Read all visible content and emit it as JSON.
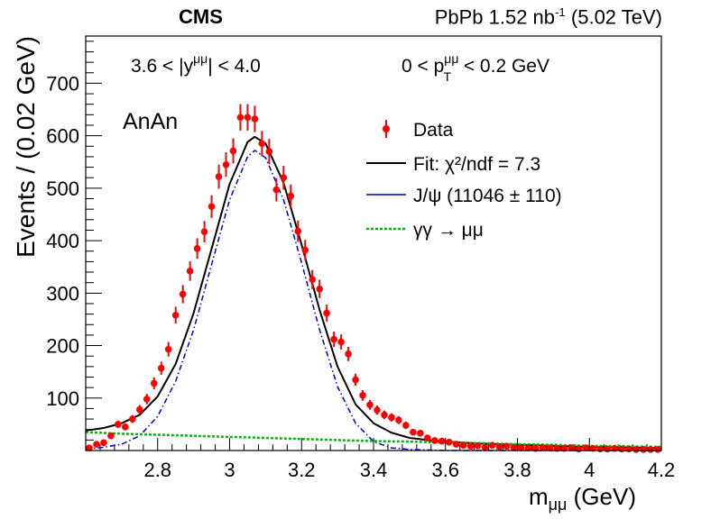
{
  "header": {
    "experiment": "CMS",
    "lumi_label": "PbPb 1.52 nb",
    "lumi_sup": "-1",
    "energy": "(5.02 TeV)"
  },
  "annotations": {
    "rapidity": "3.6 < |y^{μμ}| < 4.0",
    "pt": "0 < p_T^{μμ} < 0.2 GeV",
    "category": "AnAn"
  },
  "chart_data": {
    "type": "scatter",
    "xlabel": "m_{μμ} (GeV)",
    "ylabel": "Events / (0.02 GeV)",
    "xlim": [
      2.6,
      4.2
    ],
    "ylim": [
      0,
      790
    ],
    "x_ticks": [
      2.8,
      3,
      3.2,
      3.4,
      3.6,
      3.8,
      4,
      4.2
    ],
    "y_ticks": [
      100,
      200,
      300,
      400,
      500,
      600,
      700
    ],
    "legend_position": "upper-right",
    "series": [
      {
        "name": "Data",
        "kind": "points_with_errors",
        "color": "#ff0000",
        "x": [
          2.61,
          2.63,
          2.65,
          2.67,
          2.69,
          2.71,
          2.73,
          2.75,
          2.77,
          2.79,
          2.81,
          2.83,
          2.85,
          2.87,
          2.89,
          2.91,
          2.93,
          2.95,
          2.97,
          2.99,
          3.01,
          3.03,
          3.05,
          3.07,
          3.09,
          3.11,
          3.13,
          3.15,
          3.17,
          3.19,
          3.21,
          3.23,
          3.25,
          3.27,
          3.29,
          3.31,
          3.33,
          3.35,
          3.37,
          3.39,
          3.41,
          3.43,
          3.45,
          3.47,
          3.49,
          3.51,
          3.53,
          3.55,
          3.57,
          3.59,
          3.61,
          3.63,
          3.65,
          3.67,
          3.69,
          3.71,
          3.73,
          3.75,
          3.77,
          3.79,
          3.81,
          3.83,
          3.85,
          3.87,
          3.89,
          3.91,
          3.93,
          3.95,
          3.97,
          3.99,
          4.01,
          4.03,
          4.05,
          4.07,
          4.09,
          4.11,
          4.13,
          4.15,
          4.17,
          4.19
        ],
        "y": [
          5,
          12,
          15,
          28,
          50,
          45,
          60,
          78,
          98,
          128,
          157,
          193,
          258,
          298,
          342,
          385,
          417,
          465,
          522,
          545,
          571,
          635,
          635,
          632,
          585,
          570,
          497,
          520,
          485,
          418,
          382,
          326,
          308,
          262,
          212,
          207,
          184,
          135,
          105,
          87,
          77,
          68,
          63,
          58,
          48,
          35,
          33,
          24,
          19,
          18,
          16,
          12,
          10,
          8,
          9,
          6,
          10,
          7,
          8,
          6,
          5,
          5,
          4,
          6,
          5,
          4,
          4,
          5,
          3,
          5,
          4,
          3,
          3,
          4,
          3,
          3,
          2,
          2,
          2,
          2
        ],
        "yerr": [
          2.5,
          3.5,
          4,
          5.3,
          7.1,
          6.7,
          7.7,
          8.8,
          9.9,
          11.3,
          12.5,
          13.9,
          16.1,
          17.3,
          18.5,
          19.6,
          20.4,
          21.6,
          22.8,
          23.3,
          23.9,
          25.2,
          25.2,
          25.1,
          24.2,
          23.9,
          22.3,
          22.8,
          22,
          20.4,
          19.5,
          18.1,
          17.5,
          16.2,
          14.6,
          14.4,
          13.6,
          11.6,
          10.2,
          9.3,
          8.8,
          8.2,
          7.9,
          7.6,
          6.9,
          5.9,
          5.7,
          4.9,
          4.4,
          4.2,
          4,
          3.5,
          3.2,
          2.8,
          3,
          2.4,
          3.2,
          2.6,
          2.8,
          2.4,
          2.2,
          2.2,
          2,
          2.4,
          2.2,
          2,
          2,
          2.2,
          1.7,
          2.2,
          2,
          1.7,
          1.7,
          2,
          1.7,
          1.7,
          1.4,
          1.4,
          1.4,
          1.4
        ]
      },
      {
        "name": "Fit: χ²/ndf = 7.3",
        "kind": "line",
        "color": "#000000",
        "x": [
          2.6,
          2.65,
          2.7,
          2.75,
          2.8,
          2.85,
          2.9,
          2.95,
          3.0,
          3.05,
          3.07,
          3.1,
          3.15,
          3.2,
          3.25,
          3.3,
          3.35,
          3.4,
          3.45,
          3.5,
          3.55,
          3.6,
          3.7,
          3.8,
          3.9,
          4.0,
          4.1,
          4.2
        ],
        "y": [
          38,
          43,
          52,
          68,
          103,
          165,
          262,
          385,
          508,
          588,
          598,
          585,
          510,
          392,
          268,
          160,
          88,
          52,
          34,
          24,
          20,
          17,
          13,
          11,
          9,
          7,
          6,
          5
        ]
      },
      {
        "name": "J/ψ (11046 ± 110)",
        "kind": "dash-dot line",
        "color": "#0000cc",
        "x": [
          2.6,
          2.65,
          2.7,
          2.75,
          2.8,
          2.85,
          2.9,
          2.95,
          3.0,
          3.05,
          3.07,
          3.1,
          3.15,
          3.2,
          3.25,
          3.3,
          3.35,
          3.4,
          3.45,
          3.5,
          3.55,
          3.6,
          3.7,
          3.8,
          3.9,
          4.0,
          4.1,
          4.2
        ],
        "y": [
          3,
          6,
          12,
          28,
          65,
          132,
          230,
          355,
          478,
          560,
          572,
          558,
          478,
          358,
          230,
          122,
          52,
          17,
          5,
          2,
          1,
          0,
          0,
          0,
          0,
          0,
          0,
          0
        ]
      },
      {
        "name": "γγ → μμ",
        "kind": "dotted line",
        "color": "#00bb00",
        "x": [
          2.6,
          2.7,
          2.8,
          2.9,
          3.0,
          3.1,
          3.2,
          3.3,
          3.4,
          3.5,
          3.6,
          3.7,
          3.8,
          3.9,
          4.0,
          4.1,
          4.2
        ],
        "y": [
          35,
          32,
          30,
          28,
          26,
          24,
          22,
          20,
          18,
          17,
          15,
          14,
          12,
          11,
          9,
          8,
          7
        ]
      }
    ]
  }
}
